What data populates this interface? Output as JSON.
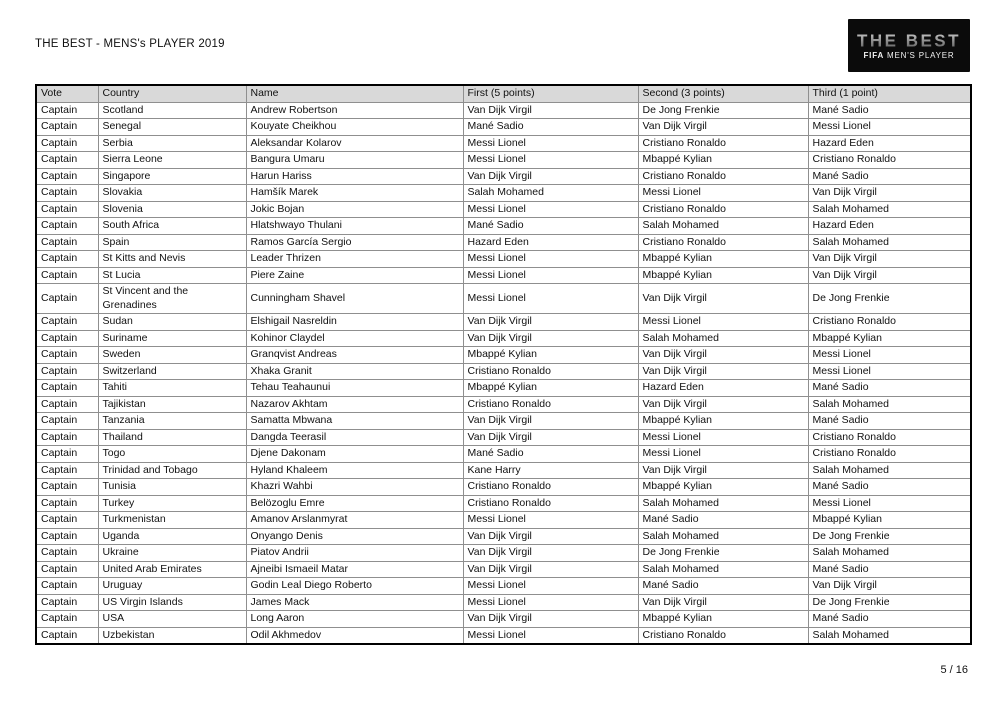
{
  "page": {
    "title": "THE BEST - MENS's PLAYER 2019",
    "page_number": "5 / 16"
  },
  "logo": {
    "wordmark": "THE BEST",
    "sub_bold": "FIFA",
    "sub_rest": " MEN'S PLAYER",
    "bg_color": "#0b0b0b",
    "wordmark_color": "#9a9a9a"
  },
  "table": {
    "columns": [
      "Vote",
      "Country",
      "Name",
      "First (5 points)",
      "Second (3 points)",
      "Third (1 point)"
    ],
    "rows": [
      [
        "Captain",
        "Scotland",
        "Andrew Robertson",
        "Van Dijk Virgil",
        "De Jong Frenkie",
        "Mané Sadio"
      ],
      [
        "Captain",
        "Senegal",
        "Kouyate Cheikhou",
        "Mané Sadio",
        "Van Dijk Virgil",
        "Messi Lionel"
      ],
      [
        "Captain",
        "Serbia",
        "Aleksandar  Kolarov",
        "Messi Lionel",
        "Cristiano Ronaldo",
        "Hazard Eden"
      ],
      [
        "Captain",
        "Sierra Leone",
        "Bangura Umaru",
        "Messi Lionel",
        "Mbappé Kylian",
        "Cristiano Ronaldo"
      ],
      [
        "Captain",
        "Singapore",
        "Harun Hariss",
        "Van Dijk Virgil",
        "Cristiano Ronaldo",
        "Mané Sadio"
      ],
      [
        "Captain",
        "Slovakia",
        "Hamšík Marek",
        "Salah Mohamed",
        "Messi Lionel",
        "Van Dijk Virgil"
      ],
      [
        "Captain",
        "Slovenia",
        "Jokic Bojan",
        "Messi Lionel",
        "Cristiano Ronaldo",
        "Salah Mohamed"
      ],
      [
        "Captain",
        "South Africa",
        "Hlatshwayo Thulani",
        "Mané Sadio",
        "Salah Mohamed",
        "Hazard Eden"
      ],
      [
        "Captain",
        "Spain",
        "Ramos García Sergio",
        "Hazard Eden",
        "Cristiano Ronaldo",
        "Salah Mohamed"
      ],
      [
        "Captain",
        "St Kitts and Nevis",
        "Leader Thrizen",
        "Messi Lionel",
        "Mbappé Kylian",
        "Van Dijk Virgil"
      ],
      [
        "Captain",
        "St Lucia",
        "Piere Zaine",
        "Messi Lionel",
        "Mbappé Kylian",
        "Van Dijk Virgil"
      ],
      [
        "Captain",
        "St Vincent and the Grenadines",
        "Cunningham Shavel",
        "Messi Lionel",
        "Van Dijk Virgil",
        "De Jong Frenkie"
      ],
      [
        "Captain",
        "Sudan",
        "Elshigail Nasreldin",
        "Van Dijk Virgil",
        "Messi Lionel",
        "Cristiano Ronaldo"
      ],
      [
        "Captain",
        "Suriname",
        "Kohinor Claydel",
        "Van Dijk Virgil",
        "Salah Mohamed",
        "Mbappé Kylian"
      ],
      [
        "Captain",
        "Sweden",
        "Granqvist Andreas",
        "Mbappé Kylian",
        "Van Dijk Virgil",
        "Messi Lionel"
      ],
      [
        "Captain",
        "Switzerland",
        "Xhaka Granit",
        "Cristiano Ronaldo",
        "Van Dijk Virgil",
        "Messi Lionel"
      ],
      [
        "Captain",
        "Tahiti",
        "Tehau Teahaunui",
        "Mbappé Kylian",
        "Hazard Eden",
        "Mané Sadio"
      ],
      [
        "Captain",
        "Tajikistan",
        "Nazarov  Akhtam",
        "Cristiano Ronaldo",
        "Van Dijk Virgil",
        "Salah Mohamed"
      ],
      [
        "Captain",
        "Tanzania",
        "Samatta Mbwana",
        "Van Dijk Virgil",
        "Mbappé Kylian",
        "Mané Sadio"
      ],
      [
        "Captain",
        "Thailand",
        "Dangda Teerasil",
        "Van Dijk Virgil",
        "Messi Lionel",
        "Cristiano Ronaldo"
      ],
      [
        "Captain",
        "Togo",
        "Djene Dakonam",
        "Mané Sadio",
        "Messi Lionel",
        "Cristiano Ronaldo"
      ],
      [
        "Captain",
        "Trinidad and Tobago",
        "Hyland Khaleem",
        "Kane Harry",
        "Van Dijk Virgil",
        "Salah Mohamed"
      ],
      [
        "Captain",
        "Tunisia",
        "Khazri Wahbi",
        "Cristiano Ronaldo",
        "Mbappé Kylian",
        "Mané Sadio"
      ],
      [
        "Captain",
        "Turkey",
        "Belözoglu Emre",
        "Cristiano Ronaldo",
        "Salah Mohamed",
        "Messi Lionel"
      ],
      [
        "Captain",
        "Turkmenistan",
        "Amanov  Arslanmyrat",
        "Messi Lionel",
        "Mané Sadio",
        "Mbappé Kylian"
      ],
      [
        "Captain",
        "Uganda",
        "Onyango  Denis",
        "Van Dijk Virgil",
        "Salah Mohamed",
        "De Jong Frenkie"
      ],
      [
        "Captain",
        "Ukraine",
        "Piatov Andrii",
        "Van Dijk Virgil",
        "De Jong Frenkie",
        "Salah Mohamed"
      ],
      [
        "Captain",
        "United Arab Emirates",
        "Ajneibi Ismaeil Matar",
        "Van Dijk Virgil",
        "Salah Mohamed",
        "Mané Sadio"
      ],
      [
        "Captain",
        "Uruguay",
        "Godin Leal Diego Roberto",
        "Messi Lionel",
        "Mané Sadio",
        "Van Dijk Virgil"
      ],
      [
        "Captain",
        "US Virgin Islands",
        "James  Mack",
        "Messi Lionel",
        "Van Dijk Virgil",
        "De Jong Frenkie"
      ],
      [
        "Captain",
        "USA",
        "Long Aaron",
        "Van Dijk Virgil",
        "Mbappé Kylian",
        "Mané Sadio"
      ],
      [
        "Captain",
        "Uzbekistan",
        "Odil Akhmedov",
        "Messi Lionel",
        "Cristiano Ronaldo",
        "Salah Mohamed"
      ]
    ]
  }
}
